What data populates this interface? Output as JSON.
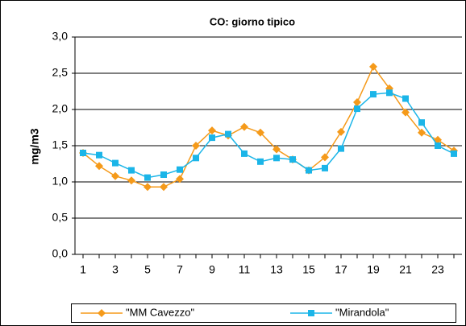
{
  "chart_data": {
    "type": "line",
    "title": "CO: giorno tipico",
    "y_label": "mg/m3",
    "categories": [
      "1",
      null,
      "3",
      null,
      "5",
      null,
      "7",
      null,
      "9",
      null,
      "11",
      null,
      "13",
      null,
      "15",
      null,
      "17",
      null,
      "19",
      null,
      "21",
      null,
      "23",
      null
    ],
    "series": [
      {
        "name": "\"MM Cavezzo\"",
        "color": "#f59a1a",
        "marker": "diamond",
        "values": [
          1.4,
          1.22,
          1.08,
          1.02,
          0.93,
          0.93,
          1.04,
          1.5,
          1.71,
          1.64,
          1.76,
          1.68,
          1.45,
          1.31,
          1.16,
          1.34,
          1.69,
          2.1,
          2.59,
          2.29,
          1.96,
          1.68,
          1.58,
          1.43
        ]
      },
      {
        "name": "\"Mirandola\"",
        "color": "#1bb5e8",
        "marker": "square",
        "values": [
          1.4,
          1.37,
          1.26,
          1.16,
          1.06,
          1.1,
          1.17,
          1.33,
          1.61,
          1.66,
          1.39,
          1.28,
          1.33,
          1.31,
          1.16,
          1.19,
          1.46,
          2.01,
          2.21,
          2.23,
          2.15,
          1.82,
          1.5,
          1.39
        ]
      }
    ],
    "ylim": [
      0,
      3
    ],
    "yticks": [
      {
        "value": 0,
        "label": "0,0"
      },
      {
        "value": 0.5,
        "label": "0,5"
      },
      {
        "value": 1,
        "label": "1,0"
      },
      {
        "value": 1.5,
        "label": "1,5"
      },
      {
        "value": 2,
        "label": "2,0"
      },
      {
        "value": 2.5,
        "label": "2,5"
      },
      {
        "value": 3,
        "label": "3,0"
      }
    ],
    "grid": true,
    "legend": "bottom"
  }
}
